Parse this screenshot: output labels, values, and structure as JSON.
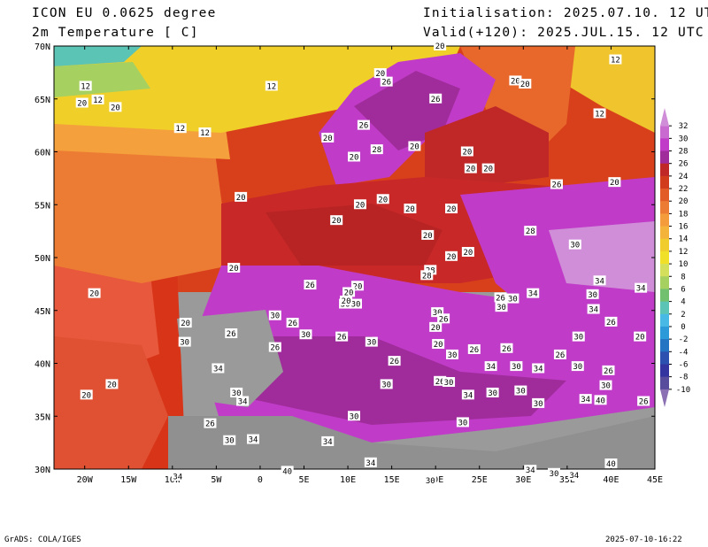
{
  "header": {
    "model": "ICON EU 0.0625 degree",
    "field": "2m Temperature [ C]",
    "init": "Initialisation: 2025.07.10. 12 UTC",
    "valid": "Valid(+120): 2025.JUL.15. 12 UTC"
  },
  "axes": {
    "lat_labels": [
      "70N",
      "65N",
      "60N",
      "55N",
      "50N",
      "45N",
      "40N",
      "35N",
      "30N"
    ],
    "lon_labels": [
      "20W",
      "15W",
      "10W",
      "5W",
      "0",
      "5E",
      "10E",
      "15E",
      "20E",
      "25E",
      "30E",
      "35E",
      "40E",
      "45E"
    ]
  },
  "colorbar": {
    "levels": [
      "32",
      "30",
      "28",
      "26",
      "24",
      "22",
      "20",
      "18",
      "16",
      "14",
      "12",
      "10",
      "8",
      "6",
      "4",
      "2",
      "0",
      "-2",
      "-4",
      "-6",
      "-8",
      "-10"
    ],
    "colors": [
      "#d08ed8",
      "#c86ad0",
      "#c03cc8",
      "#a02c9c",
      "#c02828",
      "#d03c1c",
      "#e25c28",
      "#ec7c34",
      "#f49c3c",
      "#f4b43c",
      "#f0cc2c",
      "#f0e028",
      "#d4e05c",
      "#a6d060",
      "#70c070",
      "#5cc4b4",
      "#48b8e4",
      "#2c9ad8",
      "#2474c4",
      "#2c50b0",
      "#3434a0",
      "#584c9c",
      "#8c70b4"
    ]
  },
  "contour_labels": [
    {
      "t": "20",
      "lon": 20.5,
      "lat": 70.0
    },
    {
      "t": "12",
      "lon": 40.5,
      "lat": 68.7
    },
    {
      "t": "12",
      "lon": -19.9,
      "lat": 66.2
    },
    {
      "t": "20",
      "lon": -20.3,
      "lat": 64.6
    },
    {
      "t": "12",
      "lon": -18.5,
      "lat": 64.9
    },
    {
      "t": "20",
      "lon": -16.5,
      "lat": 64.2
    },
    {
      "t": "12",
      "lon": 1.3,
      "lat": 66.2
    },
    {
      "t": "20",
      "lon": 13.7,
      "lat": 67.4
    },
    {
      "t": "26",
      "lon": 14.4,
      "lat": 66.6
    },
    {
      "t": "20",
      "lon": 29.1,
      "lat": 66.7
    },
    {
      "t": "20",
      "lon": 30.2,
      "lat": 66.4
    },
    {
      "t": "26",
      "lon": 20.0,
      "lat": 65.0
    },
    {
      "t": "12",
      "lon": 38.7,
      "lat": 63.6
    },
    {
      "t": "26",
      "lon": 11.8,
      "lat": 62.5
    },
    {
      "t": "12",
      "lon": -9.1,
      "lat": 62.2
    },
    {
      "t": "12",
      "lon": -6.3,
      "lat": 61.8
    },
    {
      "t": "20",
      "lon": 7.7,
      "lat": 61.3
    },
    {
      "t": "28",
      "lon": 13.3,
      "lat": 60.2
    },
    {
      "t": "20",
      "lon": 17.6,
      "lat": 60.5
    },
    {
      "t": "20",
      "lon": 23.6,
      "lat": 60.0
    },
    {
      "t": "20",
      "lon": 10.7,
      "lat": 59.5
    },
    {
      "t": "20",
      "lon": 24.0,
      "lat": 58.4
    },
    {
      "t": "20",
      "lon": 26.0,
      "lat": 58.4
    },
    {
      "t": "26",
      "lon": 33.8,
      "lat": 56.9
    },
    {
      "t": "20",
      "lon": 40.4,
      "lat": 57.1
    },
    {
      "t": "20",
      "lon": -2.2,
      "lat": 55.7
    },
    {
      "t": "20",
      "lon": 11.4,
      "lat": 55.0
    },
    {
      "t": "20",
      "lon": 14.0,
      "lat": 55.5
    },
    {
      "t": "20",
      "lon": 17.1,
      "lat": 54.6
    },
    {
      "t": "20",
      "lon": 21.8,
      "lat": 54.6
    },
    {
      "t": "20",
      "lon": 8.7,
      "lat": 53.5
    },
    {
      "t": "28",
      "lon": 30.8,
      "lat": 52.5
    },
    {
      "t": "20",
      "lon": 19.1,
      "lat": 52.1
    },
    {
      "t": "30",
      "lon": 35.9,
      "lat": 51.2
    },
    {
      "t": "20",
      "lon": 23.7,
      "lat": 50.5
    },
    {
      "t": "20",
      "lon": 21.8,
      "lat": 50.1
    },
    {
      "t": "20",
      "lon": -3.0,
      "lat": 49.0
    },
    {
      "t": "28",
      "lon": 19.4,
      "lat": 48.8
    },
    {
      "t": "28",
      "lon": 19.0,
      "lat": 48.3
    },
    {
      "t": "34",
      "lon": 38.7,
      "lat": 47.8
    },
    {
      "t": "34",
      "lon": 43.4,
      "lat": 47.1
    },
    {
      "t": "20",
      "lon": -18.9,
      "lat": 46.6
    },
    {
      "t": "26",
      "lon": 5.7,
      "lat": 47.4
    },
    {
      "t": "20",
      "lon": 11.1,
      "lat": 47.3
    },
    {
      "t": "20",
      "lon": 10.1,
      "lat": 46.7
    },
    {
      "t": "30",
      "lon": 9.7,
      "lat": 45.6
    },
    {
      "t": "30",
      "lon": 10.9,
      "lat": 45.6
    },
    {
      "t": "20",
      "lon": 9.8,
      "lat": 45.9
    },
    {
      "t": "26",
      "lon": 27.4,
      "lat": 46.2
    },
    {
      "t": "34",
      "lon": 31.1,
      "lat": 46.6
    },
    {
      "t": "30",
      "lon": 28.8,
      "lat": 46.1
    },
    {
      "t": "30",
      "lon": 37.9,
      "lat": 46.5
    },
    {
      "t": "30",
      "lon": 27.5,
      "lat": 45.3
    },
    {
      "t": "34",
      "lon": 38.0,
      "lat": 45.1
    },
    {
      "t": "30",
      "lon": 20.2,
      "lat": 44.8
    },
    {
      "t": "26",
      "lon": 20.9,
      "lat": 44.2
    },
    {
      "t": "30",
      "lon": 1.7,
      "lat": 44.5
    },
    {
      "t": "26",
      "lon": 3.7,
      "lat": 43.8
    },
    {
      "t": "30",
      "lon": 5.2,
      "lat": 42.7
    },
    {
      "t": "20",
      "lon": -8.5,
      "lat": 43.8
    },
    {
      "t": "20",
      "lon": 20.0,
      "lat": 43.4
    },
    {
      "t": "26",
      "lon": 40.0,
      "lat": 43.9
    },
    {
      "t": "26",
      "lon": -3.3,
      "lat": 42.8
    },
    {
      "t": "26",
      "lon": 9.3,
      "lat": 42.5
    },
    {
      "t": "30",
      "lon": 12.7,
      "lat": 42.0
    },
    {
      "t": "30",
      "lon": -8.6,
      "lat": 42.0
    },
    {
      "t": "26",
      "lon": 1.7,
      "lat": 41.5
    },
    {
      "t": "30",
      "lon": 36.3,
      "lat": 42.5
    },
    {
      "t": "26",
      "lon": 24.4,
      "lat": 41.3
    },
    {
      "t": "26",
      "lon": 28.1,
      "lat": 41.4
    },
    {
      "t": "26",
      "lon": 34.2,
      "lat": 40.8
    },
    {
      "t": "20",
      "lon": 43.3,
      "lat": 42.5
    },
    {
      "t": "20",
      "lon": 20.3,
      "lat": 41.8
    },
    {
      "t": "26",
      "lon": 15.3,
      "lat": 40.2
    },
    {
      "t": "30",
      "lon": 21.9,
      "lat": 40.8
    },
    {
      "t": "34",
      "lon": 26.3,
      "lat": 39.7
    },
    {
      "t": "30",
      "lon": 29.2,
      "lat": 39.7
    },
    {
      "t": "34",
      "lon": 31.7,
      "lat": 39.5
    },
    {
      "t": "30",
      "lon": 36.2,
      "lat": 39.7
    },
    {
      "t": "26",
      "lon": 39.7,
      "lat": 39.3
    },
    {
      "t": "34",
      "lon": -4.8,
      "lat": 39.5
    },
    {
      "t": "26",
      "lon": 20.5,
      "lat": 38.3
    },
    {
      "t": "30",
      "lon": 21.5,
      "lat": 38.2
    },
    {
      "t": "34",
      "lon": 23.7,
      "lat": 37.0
    },
    {
      "t": "30",
      "lon": 26.5,
      "lat": 37.2
    },
    {
      "t": "30",
      "lon": 29.7,
      "lat": 37.4
    },
    {
      "t": "30",
      "lon": 39.4,
      "lat": 37.9
    },
    {
      "t": "30",
      "lon": 14.4,
      "lat": 38.0
    },
    {
      "t": "34",
      "lon": -2.0,
      "lat": 36.4
    },
    {
      "t": "30",
      "lon": -2.7,
      "lat": 37.2
    },
    {
      "t": "30",
      "lon": 31.7,
      "lat": 36.2
    },
    {
      "t": "34",
      "lon": 37.1,
      "lat": 36.6
    },
    {
      "t": "40",
      "lon": 38.8,
      "lat": 36.5
    },
    {
      "t": "26",
      "lon": 43.7,
      "lat": 36.4
    },
    {
      "t": "20",
      "lon": -16.9,
      "lat": 38.0
    },
    {
      "t": "20",
      "lon": -19.8,
      "lat": 37.0
    },
    {
      "t": "30",
      "lon": 10.7,
      "lat": 35.0
    },
    {
      "t": "26",
      "lon": -5.7,
      "lat": 34.3
    },
    {
      "t": "30",
      "lon": 23.1,
      "lat": 34.4
    },
    {
      "t": "30",
      "lon": -3.5,
      "lat": 32.7
    },
    {
      "t": "34",
      "lon": -0.8,
      "lat": 32.8
    },
    {
      "t": "34",
      "lon": 7.7,
      "lat": 32.6
    },
    {
      "t": "34",
      "lon": 12.6,
      "lat": 30.6
    },
    {
      "t": "40",
      "lon": 3.1,
      "lat": 29.8
    },
    {
      "t": "40",
      "lon": 40.0,
      "lat": 30.5
    },
    {
      "t": "34",
      "lon": 30.8,
      "lat": 29.9
    },
    {
      "t": "30",
      "lon": 33.5,
      "lat": 29.6
    },
    {
      "t": "34",
      "lon": 35.8,
      "lat": 29.4
    },
    {
      "t": "34",
      "lon": -9.4,
      "lat": 29.3
    },
    {
      "t": "30",
      "lon": 19.4,
      "lat": 28.9
    }
  ],
  "footer": {
    "left": "GrADS: COLA/IGES",
    "right": "2025-07-10-16:22"
  }
}
